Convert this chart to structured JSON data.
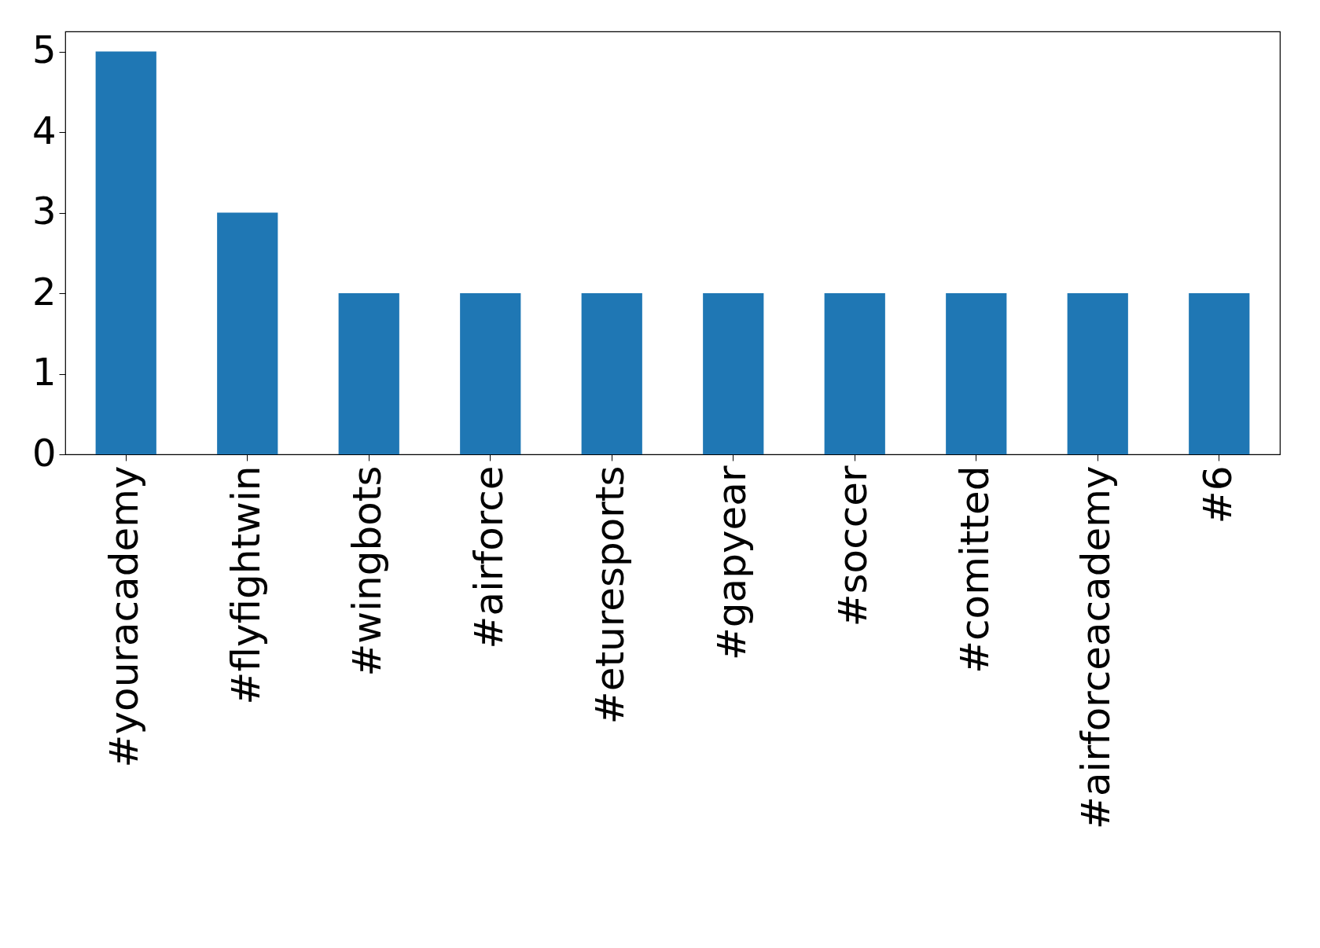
{
  "chart_data": {
    "type": "bar",
    "categories": [
      "#youracademy",
      "#flyfightwin",
      "#wingbots",
      "#airforce",
      "#eturesports",
      "#gapyear",
      "#soccer",
      "#comitted",
      "#airforceacademy",
      "#6"
    ],
    "values": [
      5,
      3,
      2,
      2,
      2,
      2,
      2,
      2,
      2,
      2
    ],
    "color": "#1f77b4",
    "ylim": [
      0,
      5.25
    ],
    "yticks": [
      0,
      1,
      2,
      3,
      4,
      5
    ],
    "grid": false
  }
}
